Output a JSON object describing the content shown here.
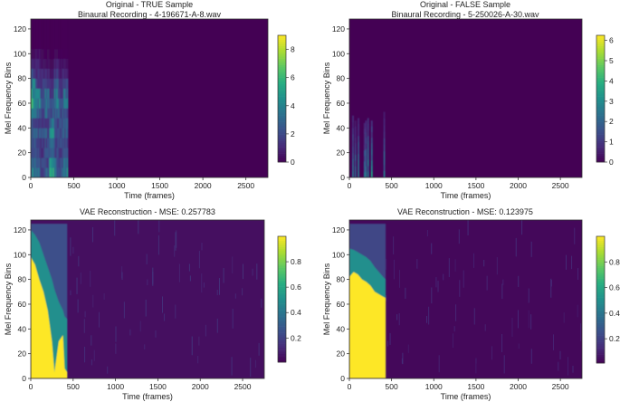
{
  "colormap": "viridis",
  "chart_data": [
    {
      "type": "heatmap",
      "title": "Original - TRUE Sample",
      "subtitle": "Binaural Recording - 4-196671-A-8.wav",
      "xlabel": "Time (frames)",
      "ylabel": "Mel Frequency Bins",
      "xlim": [
        0,
        2756
      ],
      "ylim": [
        0,
        128
      ],
      "xticks": [
        "0",
        "500",
        "1000",
        "1500",
        "2000",
        "2500"
      ],
      "yticks": [
        "0",
        "20",
        "40",
        "60",
        "80",
        "100",
        "120"
      ],
      "colorbar": {
        "range": [
          0,
          9.0
        ],
        "ticks": [
          "0",
          "2",
          "4",
          "6",
          "8"
        ]
      },
      "background_value": 0,
      "active_time_range": [
        0,
        430
      ],
      "coarse_grid": {
        "time_bins": [
          0,
          54,
          108,
          162,
          216,
          270,
          324,
          378,
          432
        ],
        "freq_bins": [
          0,
          8,
          16,
          24,
          32,
          40,
          48,
          56,
          64,
          72,
          80,
          88,
          96,
          104,
          112,
          120,
          128
        ],
        "values_by_time": [
          [
            4,
            3,
            2,
            2.5,
            3,
            2,
            3.5,
            5,
            5,
            4,
            2,
            1,
            0.3,
            0,
            0,
            0
          ],
          [
            3,
            2.5,
            2,
            2,
            2.5,
            2,
            3,
            4,
            3.5,
            2,
            1.5,
            1,
            0.5,
            0.1,
            0,
            0
          ],
          [
            2,
            2,
            1.5,
            1.5,
            2,
            1.5,
            2,
            2.5,
            2,
            1.5,
            1,
            0.5,
            0.2,
            0,
            0,
            0
          ],
          [
            3,
            2,
            2,
            2,
            2.5,
            2,
            3,
            3.5,
            3,
            2,
            1,
            0.5,
            0.2,
            0,
            0,
            0
          ],
          [
            5,
            4,
            3,
            3,
            4,
            3,
            2.5,
            2,
            1.5,
            1,
            0.5,
            0.2,
            0,
            0,
            0,
            0
          ],
          [
            3,
            3,
            2,
            2,
            2,
            2,
            3,
            4,
            3.5,
            2.5,
            1.5,
            0.8,
            0.2,
            0,
            0,
            0
          ],
          [
            3,
            2.5,
            2,
            2,
            2,
            2,
            2.5,
            2.5,
            2,
            1.5,
            1,
            0.5,
            0.1,
            0,
            0,
            0
          ],
          [
            4,
            3,
            2,
            2,
            2.5,
            2.5,
            3,
            3.5,
            3,
            2,
            1,
            0.5,
            0.1,
            0,
            0,
            0
          ]
        ]
      }
    },
    {
      "type": "heatmap",
      "title": "Original - FALSE Sample",
      "subtitle": "Binaural Recording - 5-250026-A-30.wav",
      "xlabel": "Time (frames)",
      "ylabel": "Mel Frequency Bins",
      "xlim": [
        0,
        2756
      ],
      "ylim": [
        0,
        128
      ],
      "xticks": [
        "0",
        "500",
        "1000",
        "1500",
        "2000",
        "2500"
      ],
      "yticks": [
        "0",
        "20",
        "40",
        "60",
        "80",
        "100",
        "120"
      ],
      "colorbar": {
        "range": [
          0,
          6.25
        ],
        "ticks": [
          "0",
          "1",
          "2",
          "3",
          "4",
          "5",
          "6"
        ]
      },
      "background_value": 0,
      "stripes": [
        {
          "frame": 43,
          "top_bin": 50,
          "peak": 3.0
        },
        {
          "frame": 72,
          "top_bin": 46,
          "peak": 2.5
        },
        {
          "frame": 108,
          "top_bin": 48,
          "peak": 2.8
        },
        {
          "frame": 180,
          "top_bin": 44,
          "peak": 2.2
        },
        {
          "frame": 197,
          "top_bin": 46,
          "peak": 2.6
        },
        {
          "frame": 223,
          "top_bin": 48,
          "peak": 3.2
        },
        {
          "frame": 266,
          "top_bin": 46,
          "peak": 3.5
        },
        {
          "frame": 414,
          "top_bin": 53,
          "peak": 2.4
        }
      ]
    },
    {
      "type": "heatmap",
      "title": "VAE Reconstruction - MSE: 0.257783",
      "xlabel": "Time (frames)",
      "ylabel": "Mel Frequency Bins",
      "xlim": [
        0,
        2756
      ],
      "ylim": [
        0,
        128
      ],
      "xticks": [
        "0",
        "500",
        "1000",
        "1500",
        "2000",
        "2500"
      ],
      "yticks": [
        "0",
        "20",
        "40",
        "60",
        "80",
        "100",
        "120"
      ],
      "colorbar": {
        "range": [
          0.01,
          1.0
        ],
        "ticks": [
          "0.2",
          "0.4",
          "0.6",
          "0.8"
        ]
      },
      "background_value": 0.05,
      "active_time_range": [
        0,
        430
      ],
      "regions": {
        "times": [
          0,
          50,
          100,
          150,
          200,
          250,
          280,
          330,
          380,
          400,
          430
        ],
        "high_top": [
          98,
          92,
          80,
          70,
          55,
          30,
          5,
          30,
          35,
          8,
          5
        ],
        "high_value": 1.0,
        "mid_top": [
          120,
          116,
          110,
          100,
          90,
          80,
          72,
          62,
          55,
          50,
          48
        ],
        "mid_value": 0.5,
        "low_top": [
          125,
          125,
          125,
          125,
          125,
          125,
          125,
          125,
          125,
          125,
          125
        ],
        "low_value": 0.25
      }
    },
    {
      "type": "heatmap",
      "title": "VAE Reconstruction - MSE: 0.123975",
      "xlabel": "Time (frames)",
      "ylabel": "Mel Frequency Bins",
      "xlim": [
        0,
        2756
      ],
      "ylim": [
        0,
        128
      ],
      "xticks": [
        "0",
        "500",
        "1000",
        "1500",
        "2000",
        "2500"
      ],
      "yticks": [
        "0",
        "20",
        "40",
        "60",
        "80",
        "100",
        "120"
      ],
      "colorbar": {
        "range": [
          0.01,
          1.0
        ],
        "ticks": [
          "0.2",
          "0.4",
          "0.6",
          "0.8"
        ]
      },
      "background_value": 0.03,
      "active_time_range": [
        0,
        430
      ],
      "regions": {
        "times": [
          0,
          50,
          100,
          150,
          200,
          250,
          300,
          350,
          400,
          430
        ],
        "high_top": [
          82,
          86,
          84,
          80,
          78,
          75,
          70,
          68,
          66,
          65
        ],
        "high_value": 1.0,
        "mid_top": [
          105,
          104,
          102,
          100,
          98,
          95,
          90,
          86,
          82,
          80
        ],
        "mid_value": 0.5,
        "low_top": [
          125,
          125,
          125,
          125,
          125,
          125,
          125,
          125,
          125,
          125
        ],
        "low_value": 0.22
      }
    }
  ]
}
